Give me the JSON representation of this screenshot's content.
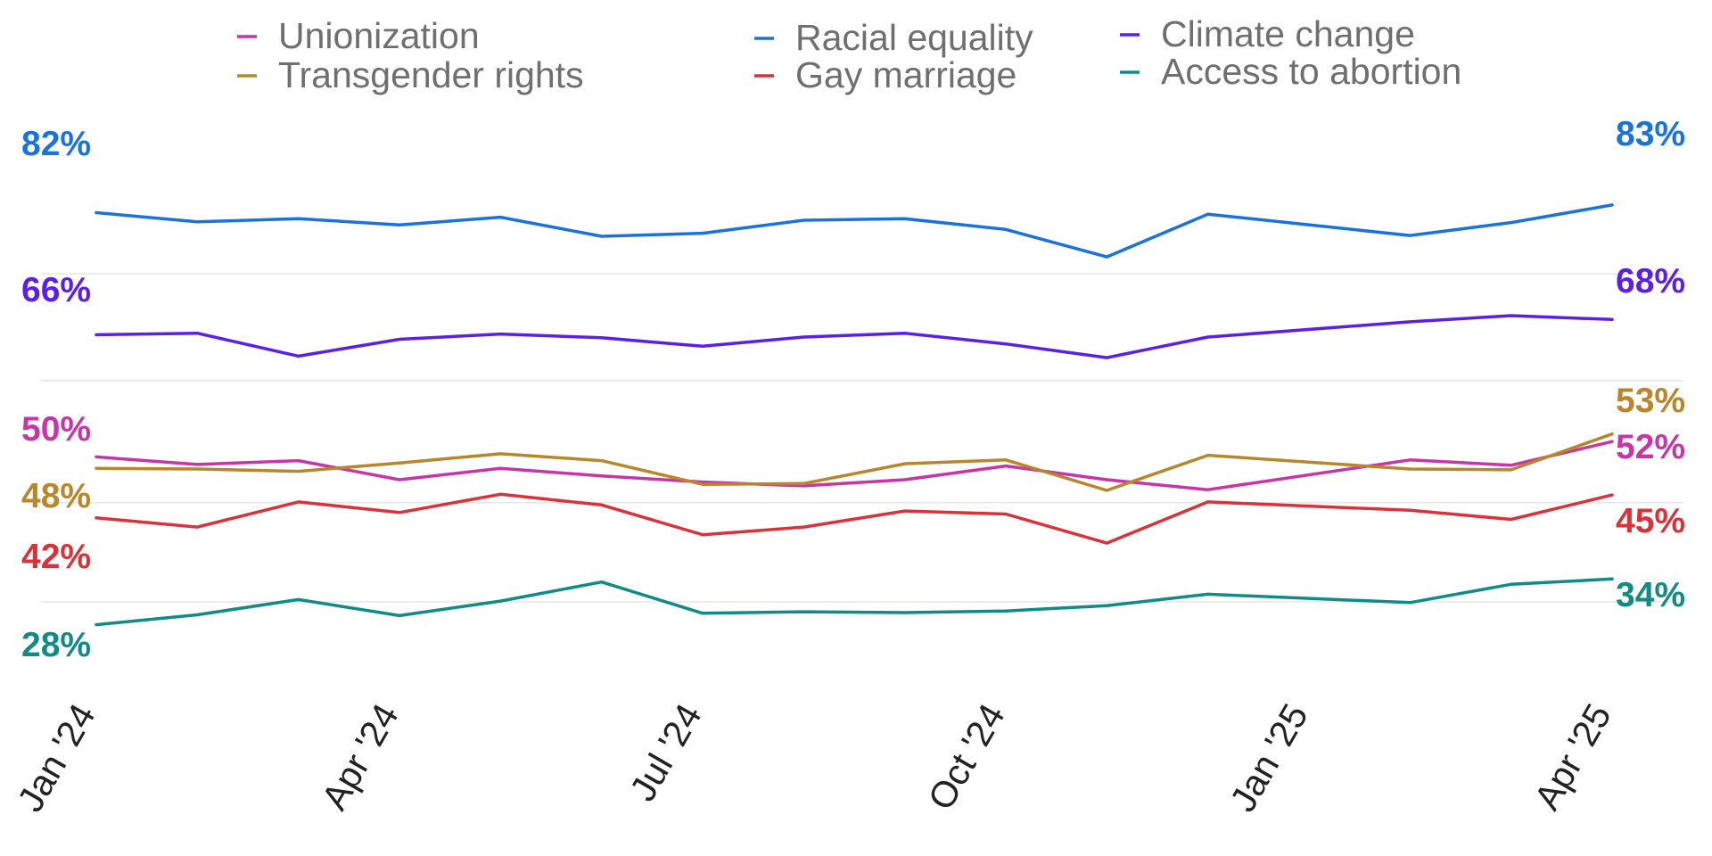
{
  "chart_data": {
    "type": "line",
    "x": [
      "Jan '24",
      "Feb '24",
      "Mar '24",
      "Apr '24",
      "May '24",
      "Jun '24",
      "Jul '24",
      "Aug '24",
      "Sep '24",
      "Oct '24",
      "Nov '24",
      "Dec '24",
      "Jan '25",
      "Feb '25",
      "Mar '25",
      "Apr '25"
    ],
    "xticks": [
      "Jan '24",
      "Apr '24",
      "Jul '24",
      "Oct '24",
      "Jan '25",
      "Apr '25"
    ],
    "ylim": [
      22,
      90
    ],
    "grid": "horizontal",
    "legend_position": "top",
    "series": [
      {
        "name": "Unionization",
        "color": "#c736a8",
        "values": [
          50,
          49,
          49.5,
          47,
          48.5,
          47.5,
          46.7,
          46.2,
          47,
          48.8,
          47,
          45.7,
          null,
          49.6,
          48.9,
          52
        ]
      },
      {
        "name": "Transgender rights",
        "color": "#b8862b",
        "values": [
          48.5,
          48.4,
          48.1,
          49.2,
          50.4,
          49.5,
          46.4,
          46.5,
          49.1,
          49.6,
          45.6,
          50.2,
          null,
          48.4,
          48.3,
          53
        ]
      },
      {
        "name": "Racial equality",
        "color": "#1a72dd",
        "values": [
          82,
          80.8,
          81.2,
          80.4,
          81.4,
          78.9,
          79.3,
          81,
          81.2,
          79.8,
          76.2,
          81.8,
          null,
          79,
          80.7,
          83
        ]
      },
      {
        "name": "Gay marriage",
        "color": "#d9323a",
        "values": [
          42,
          40.8,
          44.1,
          42.7,
          45.1,
          43.7,
          39.8,
          40.8,
          42.9,
          42.5,
          38.7,
          44.1,
          null,
          43,
          41.8,
          45
        ]
      },
      {
        "name": "Climate change",
        "color": "#5b1fe8",
        "values": [
          66,
          66.2,
          63.2,
          65.4,
          66.1,
          65.6,
          64.5,
          65.7,
          66.2,
          64.8,
          63,
          65.7,
          null,
          67.7,
          68.5,
          68
        ]
      },
      {
        "name": "Access to abortion",
        "color": "#108b86",
        "values": [
          28,
          29.3,
          31.3,
          29.2,
          31.1,
          33.6,
          29.5,
          29.7,
          29.6,
          29.8,
          30.5,
          32,
          null,
          30.9,
          33.3,
          34
        ]
      }
    ],
    "start_labels": [
      {
        "series": "Racial equality",
        "text": "82%"
      },
      {
        "series": "Climate change",
        "text": "66%"
      },
      {
        "series": "Unionization",
        "text": "50%"
      },
      {
        "series": "Transgender rights",
        "text": "48%"
      },
      {
        "series": "Gay marriage",
        "text": "42%"
      },
      {
        "series": "Access to abortion",
        "text": "28%"
      }
    ],
    "end_labels": [
      {
        "series": "Racial equality",
        "text": "83%"
      },
      {
        "series": "Climate change",
        "text": "68%"
      },
      {
        "series": "Transgender rights",
        "text": "53%"
      },
      {
        "series": "Unionization",
        "text": "52%"
      },
      {
        "series": "Gay marriage",
        "text": "45%"
      },
      {
        "series": "Access to abortion",
        "text": "34%"
      }
    ]
  }
}
